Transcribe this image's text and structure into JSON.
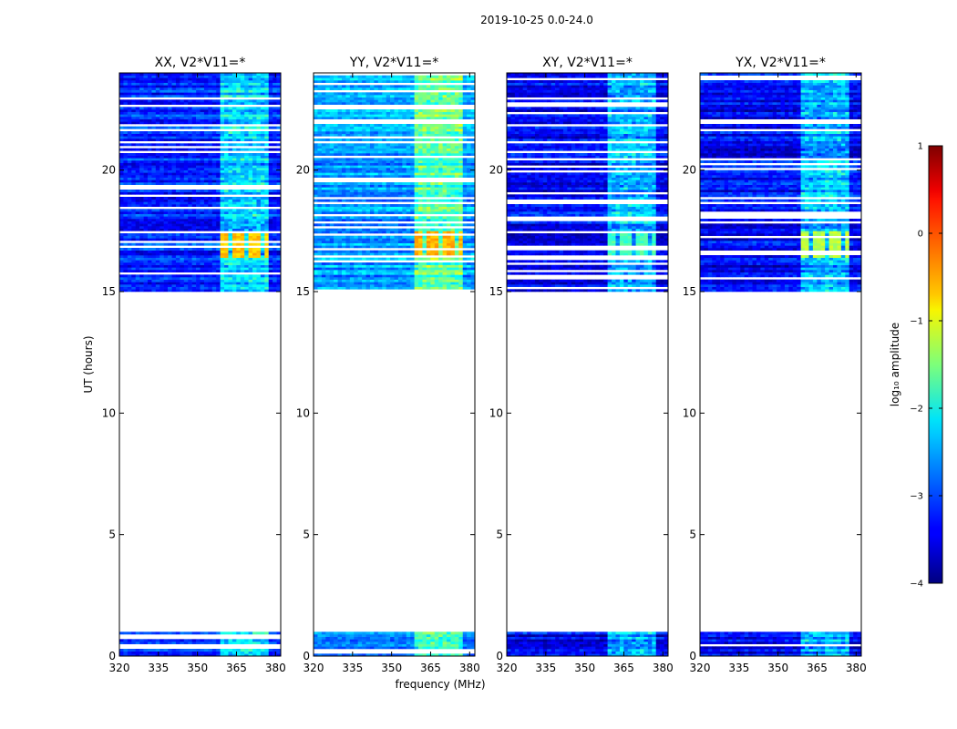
{
  "figure": {
    "suptitle": "2019-10-25 0.0-24.0",
    "xlabel": "frequency (MHz)",
    "ylabel": "UT (hours)",
    "colorbar_label": "log₁₀ amplitude"
  },
  "chart_data": {
    "type": "heatmap",
    "title": "2019-10-25 0.0-24.0",
    "xlabel": "frequency (MHz)",
    "ylabel": "UT (hours)",
    "xlim": [
      320,
      382
    ],
    "ylim": [
      0,
      24
    ],
    "xticks": [
      320,
      335,
      350,
      365,
      380
    ],
    "yticks": [
      0,
      5,
      10,
      15,
      20
    ],
    "colorbar": {
      "label": "log10 amplitude",
      "range": [
        -4,
        1
      ],
      "ticks": [
        "−4",
        "−3",
        "−2",
        "−1",
        "0",
        "1"
      ],
      "colormap": "jet"
    },
    "data_time_ranges_hours": [
      [
        0.0,
        1.0
      ],
      [
        15.0,
        24.0
      ]
    ],
    "empty_time_range_hours": [
      1.0,
      15.0
    ],
    "panels": [
      {
        "title": "XX, V2*V11=*",
        "baseline_log10": -3.2,
        "bright_band_hours": [
          16.4,
          17.5
        ],
        "bright_band_log10": -0.6
      },
      {
        "title": "YY, V2*V11=*",
        "baseline_log10": -2.6,
        "bright_band_hours": [
          16.4,
          17.5
        ],
        "bright_band_log10": -0.5
      },
      {
        "title": "XY, V2*V11=*",
        "baseline_log10": -3.4,
        "bright_band_hours": [
          16.4,
          17.5
        ],
        "bright_band_log10": -1.8
      },
      {
        "title": "YX, V2*V11=*",
        "baseline_log10": -3.4,
        "bright_band_hours": [
          16.4,
          17.5
        ],
        "bright_band_log10": -1.2
      }
    ]
  }
}
